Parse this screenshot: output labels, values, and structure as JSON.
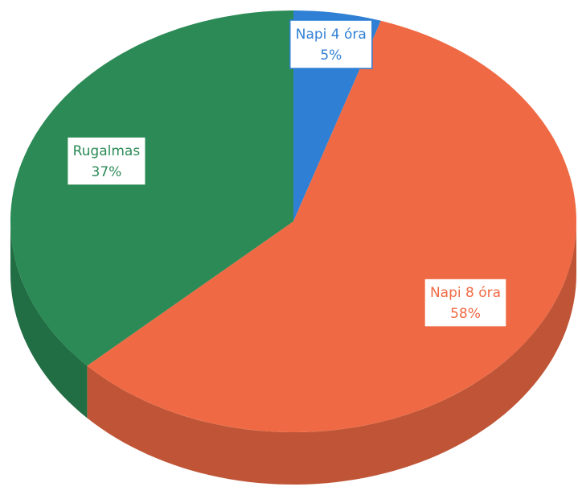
{
  "chart_data": {
    "type": "pie",
    "categories": [
      "Napi 4 óra",
      "Napi 8 óra",
      "Rugalmas"
    ],
    "values": [
      5,
      58,
      37
    ],
    "value_labels": [
      "5%",
      "58%",
      "37%"
    ],
    "colors": [
      "#2f7fd4",
      "#ef6a44",
      "#2b8a55"
    ]
  }
}
